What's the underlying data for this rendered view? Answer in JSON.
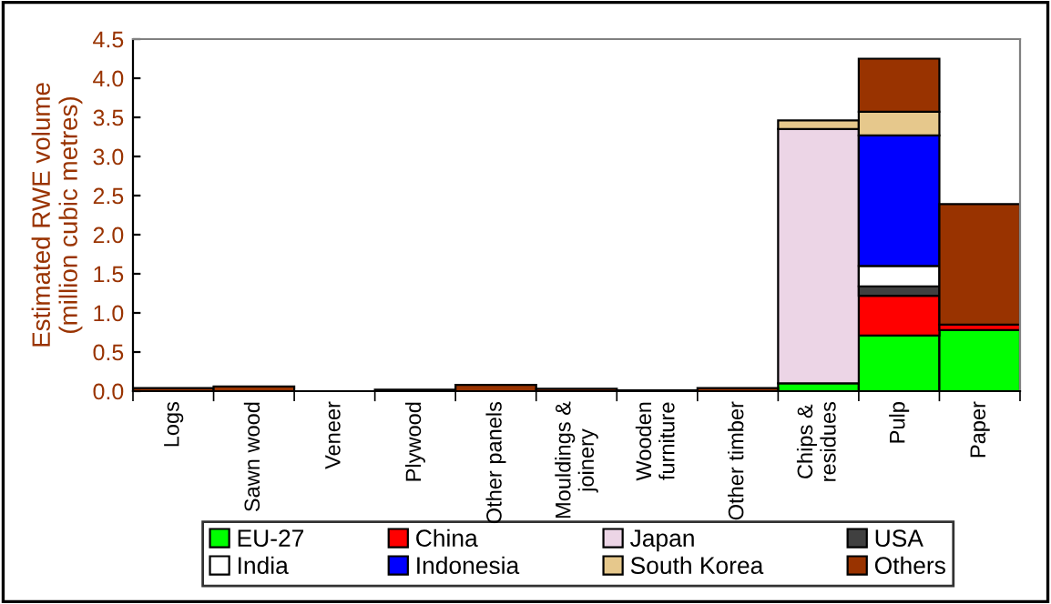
{
  "chart_data": {
    "type": "bar",
    "stacked": true,
    "ylabel": "Estimated RWE volume\n(million cubic metres)",
    "categories": [
      "Logs",
      "Sawn wood",
      "Veneer",
      "Plywood",
      "Other panels",
      "Mouldings &\njoinery",
      "Wooden\nfurniture",
      "Other timber",
      "Chips &\nresidues",
      "Pulp",
      "Paper"
    ],
    "series": [
      {
        "name": "EU-27",
        "color": "#00ff00",
        "values": [
          null,
          null,
          null,
          null,
          null,
          null,
          null,
          null,
          0.1,
          0.71,
          0.78
        ]
      },
      {
        "name": "China",
        "color": "#ff0000",
        "values": [
          null,
          null,
          null,
          null,
          null,
          null,
          null,
          null,
          null,
          0.51,
          0.07
        ]
      },
      {
        "name": "Japan",
        "color": "#ecd5e6",
        "values": [
          null,
          null,
          null,
          null,
          null,
          null,
          null,
          null,
          3.25,
          null,
          null
        ]
      },
      {
        "name": "USA",
        "color": "#404040",
        "values": [
          null,
          null,
          null,
          null,
          null,
          null,
          null,
          null,
          null,
          0.12,
          null
        ]
      },
      {
        "name": "India",
        "color": "#ffffff",
        "values": [
          null,
          null,
          null,
          null,
          null,
          null,
          null,
          null,
          null,
          0.26,
          null
        ]
      },
      {
        "name": "Indonesia",
        "color": "#0000ff",
        "values": [
          null,
          null,
          null,
          null,
          null,
          null,
          null,
          null,
          null,
          1.67,
          null
        ]
      },
      {
        "name": "South Korea",
        "color": "#e6c88c",
        "values": [
          null,
          null,
          null,
          null,
          null,
          null,
          null,
          null,
          0.11,
          0.3,
          null
        ]
      },
      {
        "name": "Others",
        "color": "#993300",
        "values": [
          0.04,
          0.06,
          null,
          0.02,
          0.08,
          0.03,
          0.01,
          0.04,
          null,
          0.68,
          1.54
        ]
      }
    ],
    "ylim": [
      0,
      4.5
    ],
    "yticks": [
      {
        "value": 0,
        "label": "0.0"
      },
      {
        "value": 0.5,
        "label": "0.5"
      },
      {
        "value": 1,
        "label": "1.0"
      },
      {
        "value": 1.5,
        "label": "1.5"
      },
      {
        "value": 2,
        "label": "2.0"
      },
      {
        "value": 2.5,
        "label": "2.5"
      },
      {
        "value": 3,
        "label": "3.0"
      },
      {
        "value": 3.5,
        "label": "3.5"
      },
      {
        "value": 4,
        "label": "4.0"
      },
      {
        "value": 4.5,
        "label": "4.5"
      }
    ],
    "grid": false,
    "legend": "bottom"
  }
}
